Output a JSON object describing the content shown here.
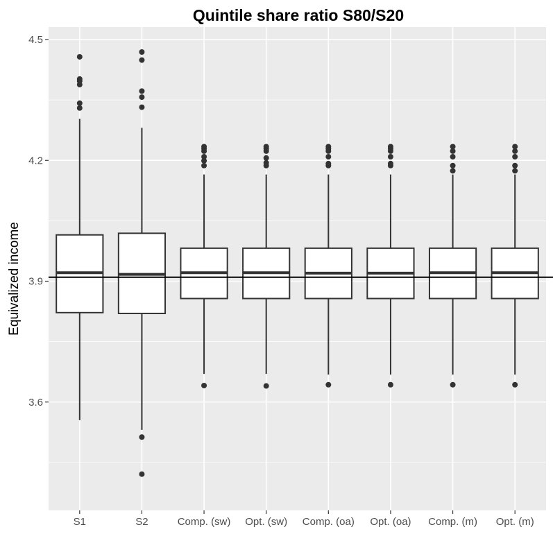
{
  "chart_data": {
    "type": "box",
    "title": "Quintile share ratio S80/S20",
    "xlabel": "",
    "ylabel": "Equivalized income",
    "ylim": [
      3.331,
      4.531
    ],
    "yticks": [
      "3.6",
      "3.9",
      "4.2",
      "4.5"
    ],
    "reference_line": 3.91,
    "grid": true,
    "categories": [
      "S1",
      "S2",
      "Comp. (sw)",
      "Opt. (sw)",
      "Comp. (oa)",
      "Opt. (oa)",
      "Comp. (m)",
      "Opt. (m)"
    ],
    "boxes": [
      {
        "lower_whisker": 3.555,
        "q1": 3.822,
        "median": 3.921,
        "q3": 4.015,
        "upper_whisker": 4.303,
        "outliers": [
          4.33,
          4.342,
          4.388,
          4.397,
          4.402,
          4.457
        ]
      },
      {
        "lower_whisker": 3.531,
        "q1": 3.82,
        "median": 3.917,
        "q3": 4.019,
        "upper_whisker": 4.281,
        "outliers": [
          3.513,
          3.421,
          4.332,
          4.357,
          4.372,
          4.449,
          4.469
        ]
      },
      {
        "lower_whisker": 3.67,
        "q1": 3.857,
        "median": 3.921,
        "q3": 3.982,
        "upper_whisker": 4.165,
        "outliers": [
          3.641,
          4.187,
          4.199,
          4.209,
          4.223,
          4.229,
          4.234
        ]
      },
      {
        "lower_whisker": 3.67,
        "q1": 3.857,
        "median": 3.921,
        "q3": 3.982,
        "upper_whisker": 4.165,
        "outliers": [
          3.64,
          4.187,
          4.194,
          4.206,
          4.223,
          4.229,
          4.234
        ]
      },
      {
        "lower_whisker": 3.668,
        "q1": 3.857,
        "median": 3.92,
        "q3": 3.982,
        "upper_whisker": 4.165,
        "outliers": [
          3.643,
          4.187,
          4.192,
          4.209,
          4.223,
          4.229,
          4.234
        ]
      },
      {
        "lower_whisker": 3.668,
        "q1": 3.857,
        "median": 3.92,
        "q3": 3.982,
        "upper_whisker": 4.165,
        "outliers": [
          3.643,
          4.187,
          4.192,
          4.209,
          4.223,
          4.229,
          4.234
        ]
      },
      {
        "lower_whisker": 3.668,
        "q1": 3.857,
        "median": 3.921,
        "q3": 3.982,
        "upper_whisker": 4.165,
        "outliers": [
          3.643,
          4.174,
          4.187,
          4.209,
          4.223,
          4.234
        ]
      },
      {
        "lower_whisker": 3.668,
        "q1": 3.857,
        "median": 3.921,
        "q3": 3.982,
        "upper_whisker": 4.165,
        "outliers": [
          3.643,
          4.174,
          4.187,
          4.209,
          4.223,
          4.234
        ]
      }
    ]
  },
  "colors": {
    "panel_background": "#ebebeb",
    "grid_major": "#ffffff",
    "box_fill": "#ffffff",
    "box_stroke": "#333333",
    "outlier": "#333333",
    "reference_line": "#000000",
    "tick_text": "#4d4d4d"
  }
}
